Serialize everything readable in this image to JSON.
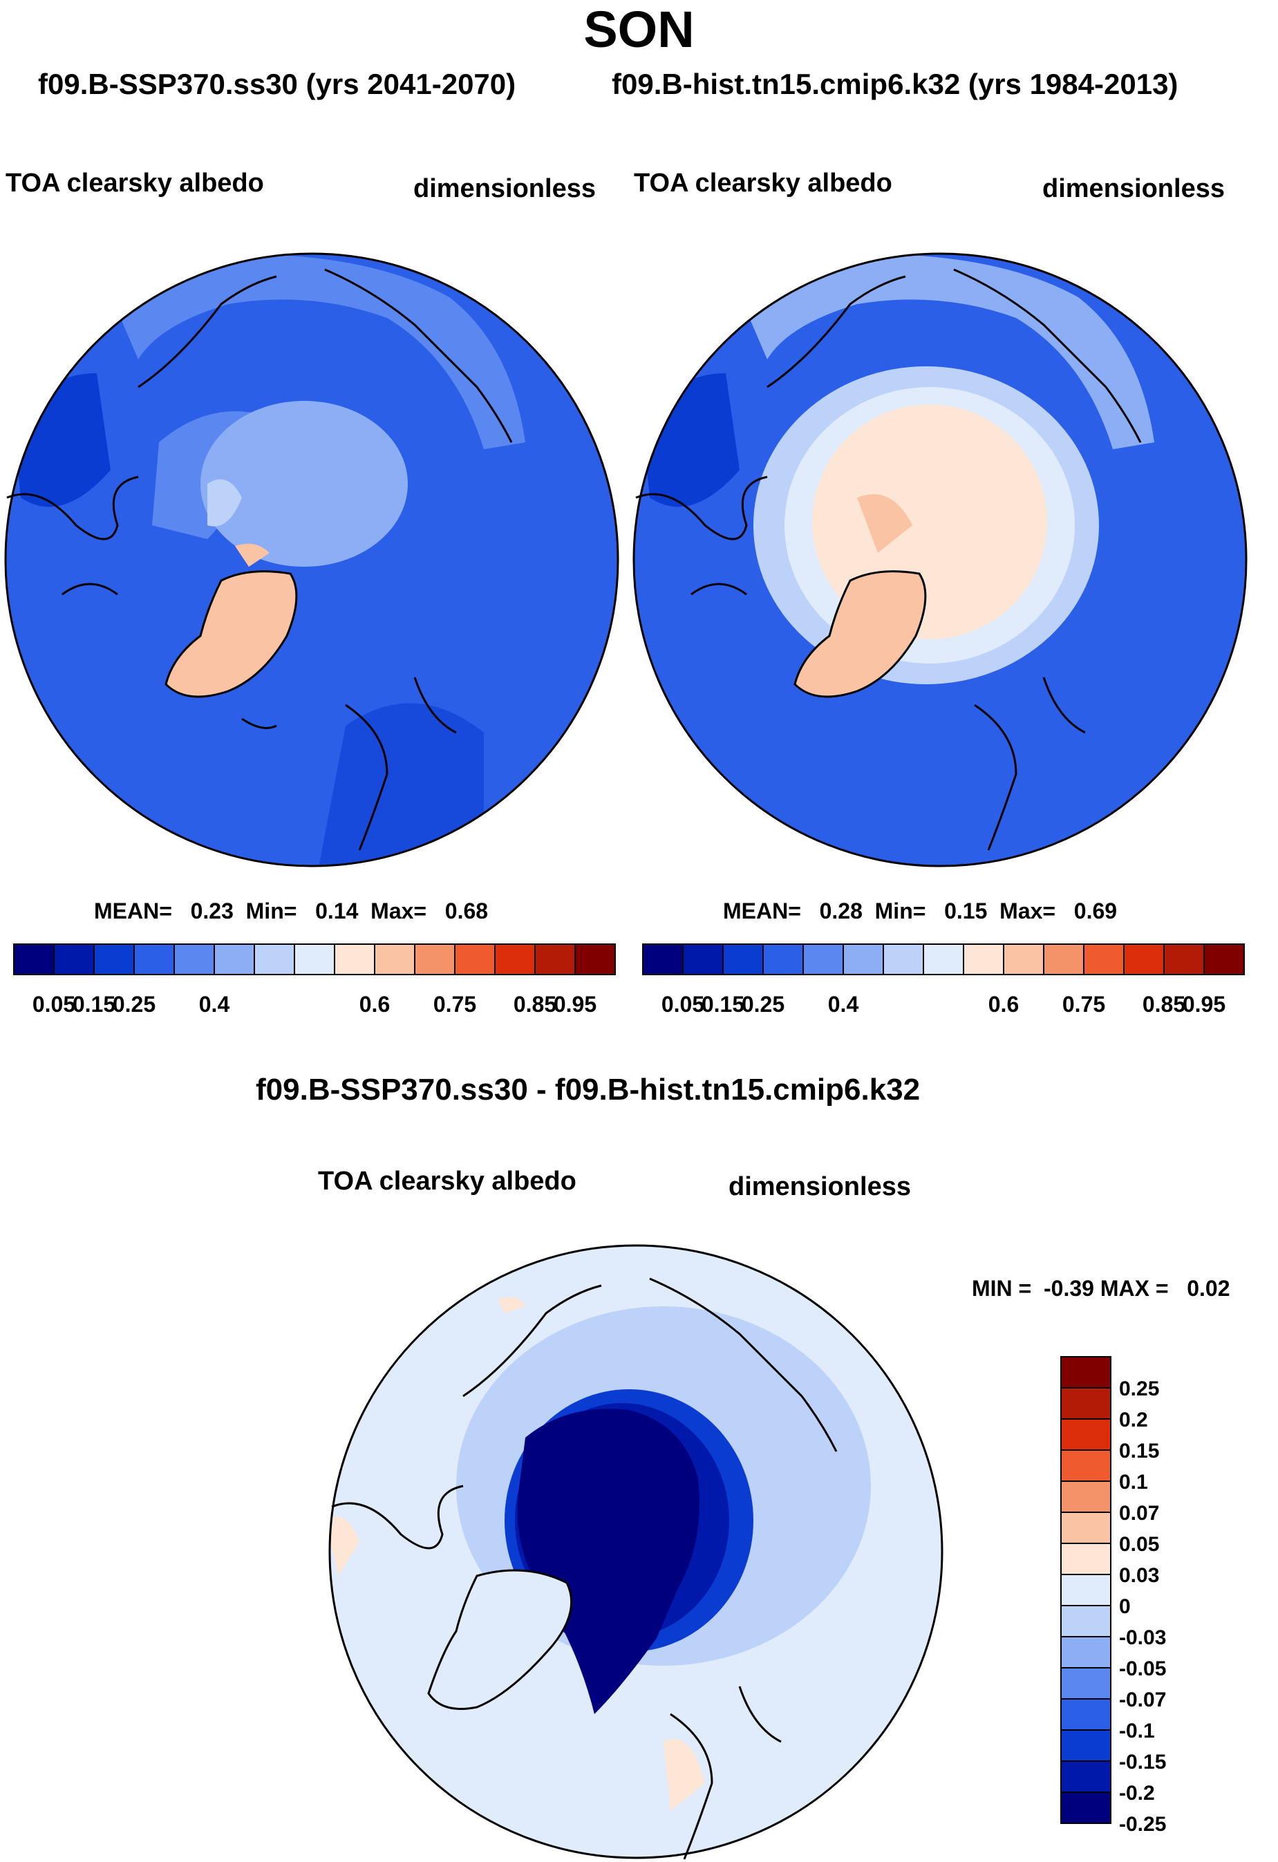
{
  "title": "SON",
  "subtitles": {
    "left_case": "f09.B-SSP370.ss30 (yrs 2041-2070)",
    "right_case": "f09.B-hist.tn15.cmip6.k32 (yrs 1984-2013)"
  },
  "panels": [
    {
      "variable": "TOA clearsky albedo",
      "units": "dimensionless",
      "stats": {
        "mean_label": "MEAN=",
        "mean": "0.23",
        "min_label": "Min=",
        "min": "0.14",
        "max_label": "Max=",
        "max": "0.68"
      }
    },
    {
      "variable": "TOA clearsky albedo",
      "units": "dimensionless",
      "stats": {
        "mean_label": "MEAN=",
        "mean": "0.28",
        "min_label": "Min=",
        "min": "0.15",
        "max_label": "Max=",
        "max": "0.69"
      }
    }
  ],
  "abs_colorbar": {
    "colors": [
      "#00007f",
      "#0019aa",
      "#0a3cd2",
      "#2c5fe8",
      "#5b87f0",
      "#8caef5",
      "#bcd2f8",
      "#e0ecfb",
      "#fde6d6",
      "#f9c3a4",
      "#f4926a",
      "#ef5a2e",
      "#dd2e0c",
      "#b41b06",
      "#800000"
    ],
    "labels": [
      "0.05",
      "0.15",
      "0.25",
      "0.4",
      "0.6",
      "0.75",
      "0.85",
      "0.95"
    ]
  },
  "difference": {
    "title": "f09.B-SSP370.ss30 - f09.B-hist.tn15.cmip6.k32",
    "variable": "TOA clearsky albedo",
    "units": "dimensionless",
    "range_text": "MIN =  -0.39 MAX =   0.02",
    "colorbar": {
      "colors": [
        "#800000",
        "#b41b06",
        "#dd2e0c",
        "#ef5a2e",
        "#f4926a",
        "#f9c3a4",
        "#fde6d6",
        "#e0ecfb",
        "#bcd2f8",
        "#8caef5",
        "#5b87f0",
        "#2c5fe8",
        "#0a3cd2",
        "#0019aa",
        "#00007f"
      ],
      "labels": [
        "0.25",
        "0.2",
        "0.15",
        "0.1",
        "0.07",
        "0.05",
        "0.03",
        "0",
        "-0.03",
        "-0.05",
        "-0.07",
        "-0.1",
        "-0.15",
        "-0.2",
        "-0.25"
      ]
    }
  }
}
